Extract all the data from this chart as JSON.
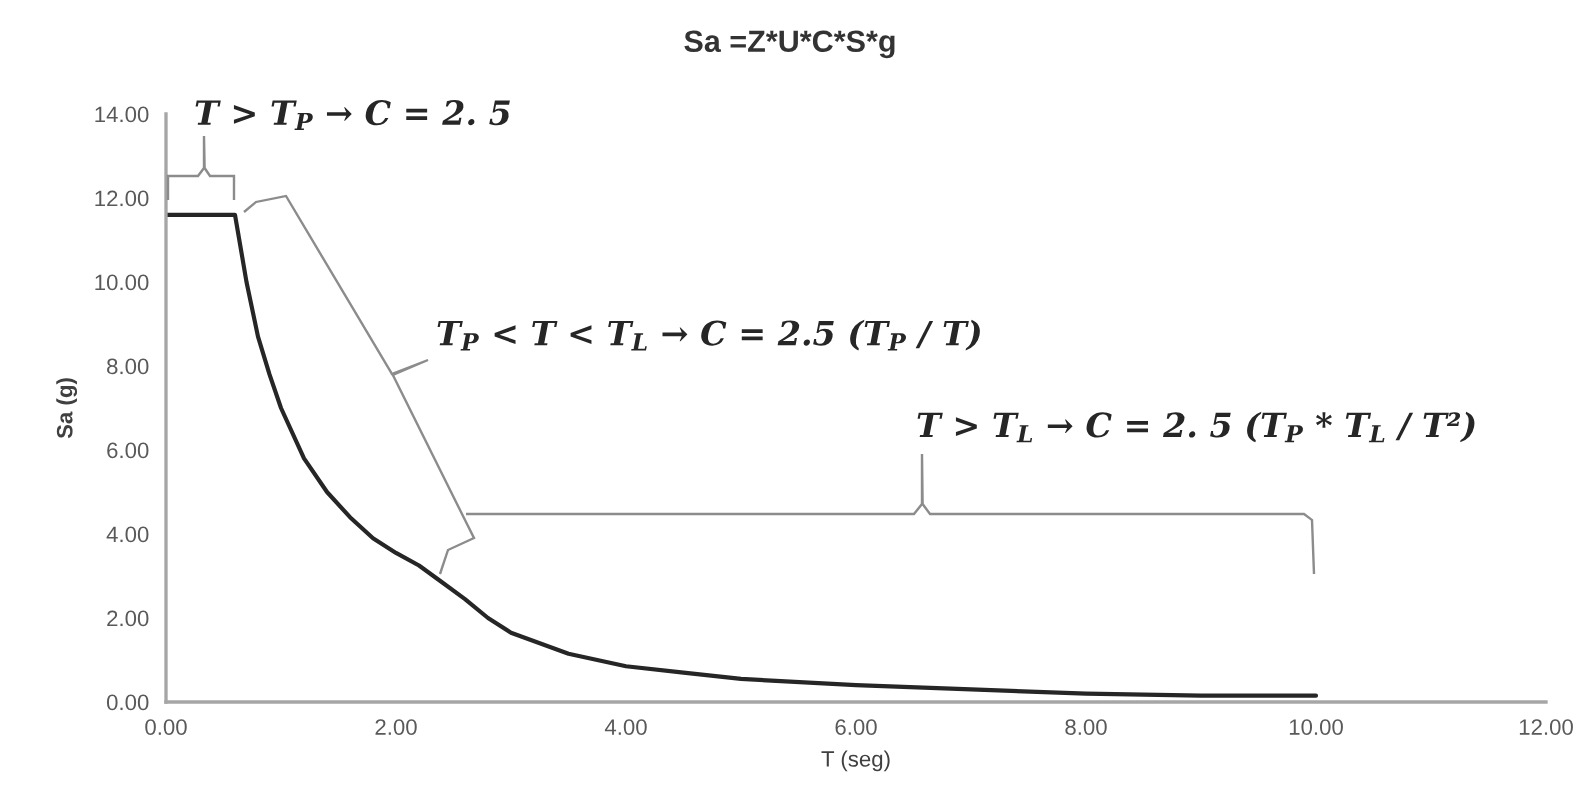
{
  "chart_data": {
    "type": "line",
    "title": "Sa =Z*U*C*S*g",
    "xlabel": "T (seg)",
    "ylabel": "Sa (g)",
    "x": [
      0,
      0.6,
      0.7,
      0.8,
      0.9,
      1.0,
      1.2,
      1.4,
      1.6,
      1.8,
      2.0,
      2.2,
      2.4,
      2.6,
      2.8,
      3.0,
      3.5,
      4.0,
      4.5,
      5.0,
      6.0,
      7.0,
      8.0,
      9.0,
      10.0
    ],
    "series": [
      {
        "color": "#262626",
        "values": [
          11.6,
          11.6,
          10.0,
          8.7,
          7.8,
          7.0,
          5.8,
          5.0,
          4.4,
          3.9,
          3.55,
          3.25,
          2.85,
          2.45,
          2.0,
          1.65,
          1.15,
          0.85,
          0.7,
          0.55,
          0.4,
          0.3,
          0.2,
          0.15,
          0.15
        ]
      }
    ],
    "xlim": [
      0,
      12
    ],
    "ylim": [
      0,
      14
    ],
    "xticks": [
      {
        "value": 0,
        "label": "0.00"
      },
      {
        "value": 2,
        "label": "2.00"
      },
      {
        "value": 4,
        "label": "4.00"
      },
      {
        "value": 6,
        "label": "6.00"
      },
      {
        "value": 8,
        "label": "8.00"
      },
      {
        "value": 10,
        "label": "10.00"
      },
      {
        "value": 12,
        "label": "12.00"
      }
    ],
    "yticks": [
      {
        "value": 0,
        "label": "0.00"
      },
      {
        "value": 2,
        "label": "2.00"
      },
      {
        "value": 4,
        "label": "4.00"
      },
      {
        "value": 6,
        "label": "6.00"
      },
      {
        "value": 8,
        "label": "8.00"
      },
      {
        "value": 10,
        "label": "10.00"
      },
      {
        "value": 12,
        "label": "12.00"
      },
      {
        "value": 14,
        "label": "14.00"
      }
    ],
    "line_style": "solid",
    "annotations": [
      "T > T$_{P}$ → C = 2. 5",
      "T$_{P}$ < T < T$_{L}$ → C = 2.5 (T$_{P}$ / T)",
      "T > T$_{L}$ → C = 2. 5 (T$_{P}$ * T$_{L}$ / T²)"
    ]
  }
}
